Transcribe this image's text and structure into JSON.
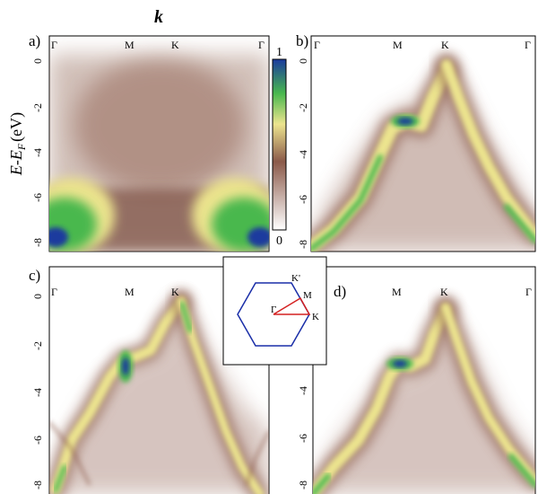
{
  "figure": {
    "k_label": "k",
    "ylabel_main": "E-E",
    "ylabel_sub": "F",
    "ylabel_unit": "(eV)",
    "colorbar": {
      "max_label": "1",
      "min_label": "0",
      "colors": [
        "#ffffff",
        "#8b5a4a",
        "#ece48e",
        "#48b84e",
        "#1a3a9e"
      ]
    },
    "panels": [
      {
        "label": "a)",
        "symbols": [
          "Γ",
          "M",
          "K",
          "Γ"
        ],
        "yticks": [
          "0",
          "-2",
          "-4",
          "-6",
          "-8"
        ]
      },
      {
        "label": "b)",
        "symbols": [
          "Γ",
          "M",
          "K",
          "Γ"
        ],
        "yticks": [
          "0",
          "-2",
          "-4",
          "-6",
          "-8"
        ]
      },
      {
        "label": "c)",
        "symbols": [
          "Γ",
          "M",
          "K"
        ],
        "yticks": [
          "0",
          "-2",
          "-4",
          "-6",
          "-8"
        ]
      },
      {
        "label": "d)",
        "symbols": [
          "M",
          "K",
          "Γ"
        ],
        "yticks": [
          "-4",
          "-6",
          "-8"
        ]
      }
    ],
    "inset": {
      "labels": [
        "K'",
        "M",
        "Γ",
        "K"
      ],
      "hex_color": "#1a2ea8",
      "path_color": "#d42020"
    }
  }
}
